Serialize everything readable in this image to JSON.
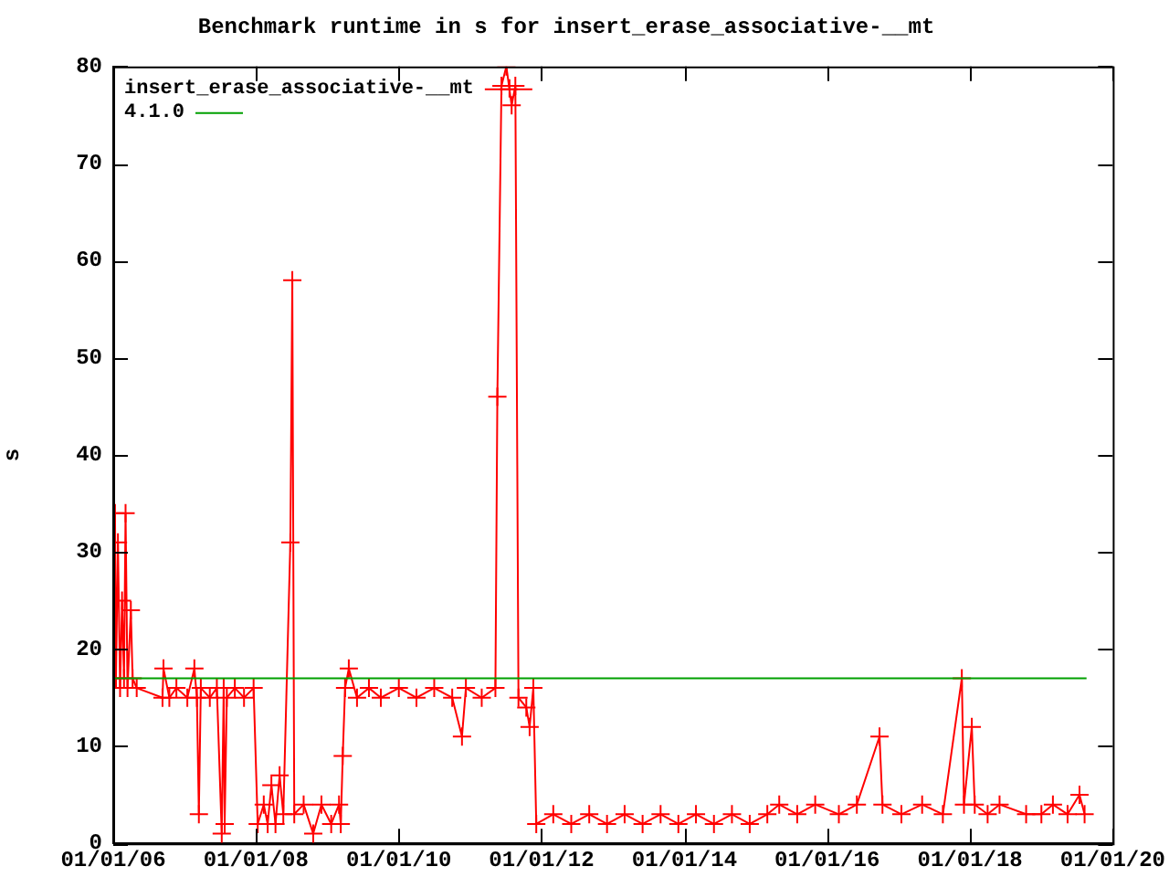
{
  "chart_data": {
    "type": "line",
    "title": "Benchmark runtime in s for insert_erase_associative-__mt",
    "ylabel": "s",
    "xlim": [
      "2006-01-01",
      "2020-01-01"
    ],
    "xticks": [
      {
        "value": "2006-01-01",
        "label": "01/01/06"
      },
      {
        "value": "2008-01-01",
        "label": "01/01/08"
      },
      {
        "value": "2010-01-01",
        "label": "01/01/10"
      },
      {
        "value": "2012-01-01",
        "label": "01/01/12"
      },
      {
        "value": "2014-01-01",
        "label": "01/01/14"
      },
      {
        "value": "2016-01-01",
        "label": "01/01/16"
      },
      {
        "value": "2018-01-01",
        "label": "01/01/18"
      },
      {
        "value": "2020-01-01",
        "label": "01/01/20"
      }
    ],
    "ylim": [
      0,
      80
    ],
    "yticks": [
      0,
      10,
      20,
      30,
      40,
      50,
      60,
      70,
      80
    ],
    "grid": false,
    "legend": "top left",
    "line_style": "solid",
    "series": [
      {
        "name": "insert_erase_associative-__mt",
        "color": "#ff0000",
        "marker": "cross",
        "x": [
          "2006-01-05",
          "2006-01-10",
          "2006-01-15",
          "2006-01-25",
          "2006-02-05",
          "2006-02-15",
          "2006-02-25",
          "2006-03-05",
          "2006-03-15",
          "2006-04-01",
          "2006-04-10",
          "2006-05-01",
          "2006-09-10",
          "2006-09-15",
          "2006-10-15",
          "2006-11-20",
          "2007-01-15",
          "2007-02-20",
          "2007-03-05",
          "2007-03-15",
          "2007-03-25",
          "2007-05-10",
          "2007-06-15",
          "2007-07-10",
          "2007-07-20",
          "2007-07-25",
          "2007-08-05",
          "2007-09-15",
          "2007-11-01",
          "2007-12-20",
          "2008-01-10",
          "2008-02-10",
          "2008-03-01",
          "2008-03-20",
          "2008-04-10",
          "2008-05-01",
          "2008-05-20",
          "2008-06-25",
          "2008-07-05",
          "2008-07-15",
          "2008-09-01",
          "2008-10-20",
          "2008-12-01",
          "2009-01-20",
          "2009-03-01",
          "2009-03-10",
          "2009-03-20",
          "2009-04-01",
          "2009-04-20",
          "2009-06-01",
          "2009-08-01",
          "2009-10-01",
          "2010-01-01",
          "2010-04-01",
          "2010-07-01",
          "2010-10-01",
          "2010-11-20",
          "2010-12-10",
          "2011-03-01",
          "2011-05-10",
          "2011-05-20",
          "2011-06-10",
          "2011-07-05",
          "2011-08-01",
          "2011-08-20",
          "2011-09-05",
          "2011-10-15",
          "2011-11-01",
          "2011-11-20",
          "2011-12-05",
          "2012-03-01",
          "2012-06-01",
          "2012-09-01",
          "2012-12-01",
          "2013-03-01",
          "2013-06-01",
          "2013-09-01",
          "2013-12-01",
          "2014-03-01",
          "2014-06-01",
          "2014-09-01",
          "2014-12-01",
          "2015-03-01",
          "2015-05-01",
          "2015-08-01",
          "2015-11-01",
          "2016-03-01",
          "2016-06-01",
          "2016-09-25",
          "2016-10-10",
          "2017-01-15",
          "2017-05-01",
          "2017-08-15",
          "2017-11-20",
          "2017-12-01",
          "2018-01-10",
          "2018-01-25",
          "2018-04-01",
          "2018-06-01",
          "2018-10-15",
          "2019-01-01",
          "2019-03-01",
          "2019-05-15",
          "2019-07-15",
          "2019-08-10"
        ],
        "values": [
          16,
          34,
          17,
          31,
          16,
          25,
          17,
          34,
          16,
          24,
          17,
          16,
          15,
          18,
          15,
          16,
          15,
          18,
          15,
          3,
          16,
          15,
          16,
          1,
          16,
          2,
          15,
          16,
          15,
          16,
          2,
          4,
          2,
          6,
          2,
          7,
          3,
          31,
          58,
          3,
          4,
          1,
          4,
          2,
          4,
          2,
          9,
          16,
          18,
          15,
          16,
          15,
          16,
          15,
          16,
          15,
          11,
          16,
          15,
          16,
          46,
          78,
          80,
          76,
          78,
          15,
          14,
          12,
          16,
          2,
          3,
          2,
          3,
          2,
          3,
          2,
          3,
          2,
          3,
          2,
          3,
          2,
          3,
          4,
          3,
          4,
          3,
          4,
          11,
          4,
          3,
          4,
          3,
          17,
          4,
          12,
          4,
          3,
          4,
          3,
          3,
          4,
          3,
          5,
          3
        ]
      },
      {
        "name": "4.1.0",
        "color": "#00a000",
        "marker": "none",
        "x": [
          "2006-01-01",
          "2019-08-20"
        ],
        "values": [
          17,
          17
        ]
      }
    ]
  }
}
